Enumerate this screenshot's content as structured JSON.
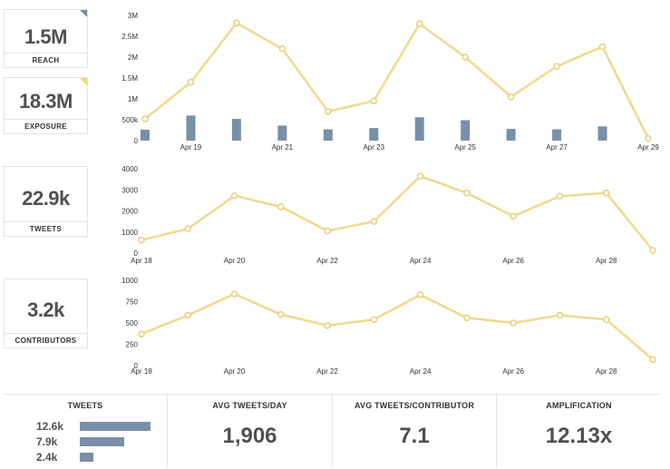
{
  "stats": {
    "reach": {
      "value": "1.5M",
      "label": "REACH",
      "corner_color": "#7a8fa8"
    },
    "exposure": {
      "value": "18.3M",
      "label": "EXPOSURE",
      "corner_color": "#f0d67a"
    },
    "tweets": {
      "value": "22.9k",
      "label": "TWEETS"
    },
    "contributors": {
      "value": "3.2k",
      "label": "CONTRIBUTORS"
    }
  },
  "footer": {
    "tweets": {
      "title": "TWEETS",
      "rows": [
        {
          "label": "12.6k",
          "value": 12.6
        },
        {
          "label": "7.9k",
          "value": 7.9
        },
        {
          "label": "2.4k",
          "value": 2.4
        }
      ]
    },
    "avg_per_day": {
      "title": "AVG TWEETS/DAY",
      "value": "1,906"
    },
    "avg_per_contributor": {
      "title": "AVG TWEETS/CONTRIBUTOR",
      "value": "7.1"
    },
    "amplification": {
      "title": "AMPLIFICATION",
      "value": "12.13x"
    }
  },
  "colors": {
    "line": "#efd98e",
    "point_stroke": "#e8cf7a",
    "bar": "#7a8fa8"
  },
  "chart_data": [
    {
      "type": "line",
      "x": [
        "Apr 18",
        "Apr 19",
        "Apr 20",
        "Apr 21",
        "Apr 22",
        "Apr 23",
        "Apr 24",
        "Apr 25",
        "Apr 26",
        "Apr 27",
        "Apr 28",
        "Apr 29"
      ],
      "xtick_labels": [
        "Apr 19",
        "Apr 21",
        "Apr 23",
        "Apr 25",
        "Apr 27",
        "Apr 29"
      ],
      "yticks": [
        "0",
        "500k",
        "1M",
        "1.5M",
        "2M",
        "2.5M",
        "3M"
      ],
      "ylim": [
        0,
        3000000
      ],
      "series": [
        {
          "kind": "line",
          "values": [
            520000,
            1400000,
            2820000,
            2200000,
            700000,
            950000,
            2800000,
            2000000,
            1050000,
            1780000,
            2250000,
            50000
          ]
        },
        {
          "kind": "bar",
          "values": [
            260000,
            600000,
            520000,
            360000,
            270000,
            300000,
            560000,
            490000,
            280000,
            270000,
            340000,
            0
          ]
        }
      ]
    },
    {
      "type": "line",
      "x": [
        "Apr 18",
        "Apr 19",
        "Apr 20",
        "Apr 21",
        "Apr 22",
        "Apr 23",
        "Apr 24",
        "Apr 25",
        "Apr 26",
        "Apr 27",
        "Apr 28",
        "Apr 29"
      ],
      "xtick_labels": [
        "Apr 18",
        "Apr 20",
        "Apr 22",
        "Apr 24",
        "Apr 26",
        "Apr 28"
      ],
      "yticks": [
        "0",
        "1000",
        "2000",
        "3000",
        "4000"
      ],
      "ylim": [
        0,
        4000
      ],
      "series": [
        {
          "kind": "line",
          "values": [
            620,
            1150,
            2720,
            2200,
            1050,
            1500,
            3650,
            2850,
            1750,
            2700,
            2850,
            130
          ]
        }
      ]
    },
    {
      "type": "line",
      "x": [
        "Apr 18",
        "Apr 19",
        "Apr 20",
        "Apr 21",
        "Apr 22",
        "Apr 23",
        "Apr 24",
        "Apr 25",
        "Apr 26",
        "Apr 27",
        "Apr 28",
        "Apr 29"
      ],
      "xtick_labels": [
        "Apr 18",
        "Apr 20",
        "Apr 22",
        "Apr 24",
        "Apr 26",
        "Apr 28"
      ],
      "yticks": [
        "0",
        "250",
        "500",
        "750",
        "1000"
      ],
      "ylim": [
        0,
        1000
      ],
      "series": [
        {
          "kind": "line",
          "values": [
            370,
            590,
            840,
            600,
            470,
            540,
            830,
            560,
            500,
            590,
            540,
            70
          ]
        }
      ]
    }
  ]
}
